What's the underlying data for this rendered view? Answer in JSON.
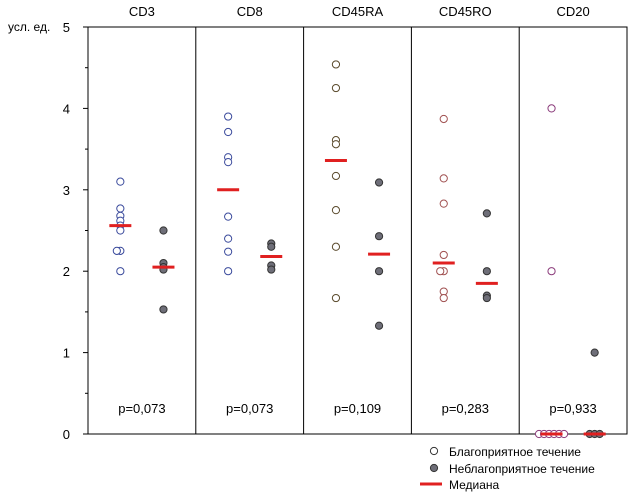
{
  "chart_data": {
    "type": "scatter",
    "ylabel": "усл. ед.",
    "ylim": [
      0,
      5
    ],
    "yticks": [
      0,
      1,
      2,
      3,
      4,
      5
    ],
    "grid": false,
    "legend_position": "bottom-right",
    "legend": {
      "favorable": "Благоприятное течение",
      "unfavorable": "Неблагоприятное течение",
      "median": "Медиана"
    },
    "colors": {
      "favorable_outline": "#3a4a9c",
      "unfavorable_fill": "#6e6e78",
      "median": "#e02020"
    },
    "groups": [
      {
        "name": "CD3",
        "pvalue": "p=0,073",
        "favorable_color": "#3a4a9c",
        "favorable": [
          3.1,
          2.77,
          2.68,
          2.62,
          2.56,
          2.5,
          2.25,
          2.25,
          2.0
        ],
        "favorable_median": 2.56,
        "unfavorable": [
          2.5,
          2.1,
          2.05,
          2.02,
          1.53
        ],
        "unfavorable_median": 2.05
      },
      {
        "name": "CD8",
        "pvalue": "p=0,073",
        "favorable_color": "#3a4a9c",
        "favorable": [
          3.9,
          3.71,
          3.4,
          3.34,
          2.67,
          2.4,
          2.24,
          2.0
        ],
        "favorable_median": 3.0,
        "unfavorable": [
          2.34,
          2.3,
          2.07,
          2.02
        ],
        "unfavorable_median": 2.18
      },
      {
        "name": "CD45RA",
        "pvalue": "p=0,109",
        "favorable_color": "#5a4a2c",
        "favorable": [
          4.54,
          4.25,
          3.61,
          3.56,
          3.17,
          2.75,
          2.3,
          1.67
        ],
        "favorable_median": 3.36,
        "unfavorable": [
          3.09,
          2.43,
          2.0,
          1.33
        ],
        "unfavorable_median": 2.21
      },
      {
        "name": "CD45RO",
        "pvalue": "p=0,283",
        "favorable_color": "#a05050",
        "favorable": [
          3.87,
          3.14,
          2.83,
          2.2,
          2.0,
          2.0,
          1.75,
          1.67
        ],
        "favorable_median": 2.1,
        "unfavorable": [
          2.71,
          2.0,
          1.7,
          1.67
        ],
        "unfavorable_median": 1.85
      },
      {
        "name": "CD20",
        "pvalue": "p=0,933",
        "favorable_color": "#8a3a7a",
        "favorable": [
          4.0,
          2.0,
          0,
          0,
          0,
          0,
          0,
          0
        ],
        "favorable_median": 0,
        "unfavorable": [
          1.0,
          0,
          0,
          0
        ],
        "unfavorable_median": 0
      }
    ]
  }
}
